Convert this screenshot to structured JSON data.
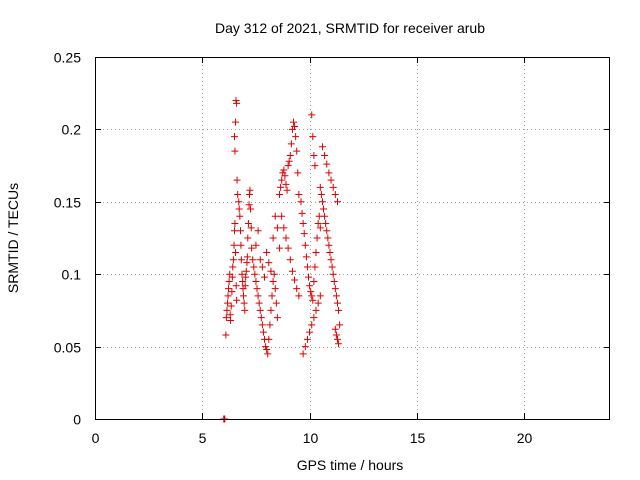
{
  "colors": {
    "series": "#e00000",
    "axis": "#000000",
    "grid": "#a0a0a0"
  },
  "chart_data": {
    "type": "scatter",
    "title": "Day 312 of 2021, SRMTID for receiver arub",
    "xlabel": "GPS time / hours",
    "ylabel": "SRMTID / TECUs",
    "xlim": [
      0,
      24
    ],
    "ylim": [
      0,
      0.25
    ],
    "grid": true,
    "legend": "none",
    "marker": "plus",
    "x_ticks": [
      0,
      5,
      10,
      15,
      20
    ],
    "x_tick_labels": [
      "0",
      "5",
      "10",
      "15",
      "20"
    ],
    "y_ticks": [
      0,
      0.05,
      0.1,
      0.15,
      0.2,
      0.25
    ],
    "y_tick_labels": [
      "0",
      "0.05",
      "0.1",
      "0.15",
      "0.2",
      "0.25"
    ],
    "series": [
      {
        "name": "SRMTID",
        "x": [
          6.0,
          6.03,
          6.05,
          6.1,
          6.12,
          6.15,
          6.18,
          6.2,
          6.22,
          6.25,
          6.28,
          6.3,
          6.32,
          6.35,
          6.38,
          6.4,
          6.42,
          6.45,
          6.48,
          6.5,
          6.52,
          6.55,
          6.58,
          6.6,
          6.5,
          6.52,
          6.55,
          6.57,
          6.6,
          6.62,
          6.65,
          6.7,
          6.72,
          6.75,
          6.78,
          6.8,
          6.82,
          6.85,
          6.88,
          6.9,
          6.92,
          6.95,
          6.98,
          7.0,
          7.02,
          7.05,
          7.08,
          7.1,
          7.12,
          7.15,
          7.18,
          7.2,
          7.22,
          7.25,
          7.28,
          7.3,
          7.35,
          7.4,
          7.45,
          7.5,
          7.55,
          7.6,
          7.65,
          7.7,
          7.75,
          7.8,
          7.85,
          7.9,
          7.95,
          8.0,
          8.05,
          8.1,
          8.15,
          8.2,
          8.25,
          8.3,
          8.35,
          8.4,
          8.45,
          8.5,
          7.5,
          7.6,
          7.7,
          7.8,
          7.9,
          8.0,
          8.1,
          8.2,
          8.3,
          8.4,
          8.5,
          8.6,
          8.6,
          8.65,
          8.7,
          8.75,
          8.8,
          8.85,
          8.9,
          8.95,
          9.0,
          9.05,
          9.1,
          9.15,
          9.2,
          9.25,
          9.3,
          9.35,
          9.4,
          9.45,
          9.5,
          8.7,
          8.8,
          8.9,
          9.0,
          9.1,
          9.2,
          9.3,
          9.4,
          9.5,
          9.6,
          9.65,
          9.7,
          9.75,
          9.8,
          9.85,
          9.9,
          9.95,
          10.0,
          10.05,
          10.1,
          10.15,
          10.2,
          10.25,
          10.3,
          10.35,
          10.4,
          10.45,
          10.5,
          9.7,
          9.8,
          9.9,
          10.0,
          10.1,
          10.2,
          10.3,
          10.4,
          10.5,
          10.1,
          10.15,
          10.2,
          10.25,
          10.5,
          10.55,
          10.6,
          10.65,
          10.7,
          10.75,
          10.8,
          10.85,
          10.9,
          10.95,
          11.0,
          11.05,
          11.1,
          11.15,
          11.2,
          11.25,
          11.3,
          11.35,
          10.6,
          10.7,
          10.8,
          10.9,
          11.0,
          11.1,
          11.2,
          11.3,
          11.2,
          11.25,
          11.3,
          11.35,
          11.4
        ],
        "y": [
          0.0,
          0.0,
          0.0,
          0.058,
          0.07,
          0.075,
          0.08,
          0.085,
          0.09,
          0.095,
          0.1,
          0.072,
          0.068,
          0.078,
          0.088,
          0.098,
          0.105,
          0.11,
          0.12,
          0.13,
          0.135,
          0.115,
          0.092,
          0.082,
          0.195,
          0.185,
          0.205,
          0.22,
          0.218,
          0.165,
          0.155,
          0.15,
          0.145,
          0.14,
          0.13,
          0.12,
          0.11,
          0.1,
          0.095,
          0.09,
          0.085,
          0.08,
          0.075,
          0.092,
          0.098,
          0.102,
          0.108,
          0.112,
          0.125,
          0.135,
          0.148,
          0.155,
          0.158,
          0.145,
          0.132,
          0.118,
          0.11,
          0.105,
          0.1,
          0.095,
          0.09,
          0.085,
          0.08,
          0.075,
          0.07,
          0.065,
          0.06,
          0.055,
          0.05,
          0.048,
          0.045,
          0.055,
          0.065,
          0.075,
          0.085,
          0.095,
          0.1,
          0.09,
          0.08,
          0.07,
          0.12,
          0.13,
          0.11,
          0.105,
          0.098,
          0.115,
          0.108,
          0.102,
          0.125,
          0.14,
          0.132,
          0.118,
          0.155,
          0.16,
          0.165,
          0.17,
          0.172,
          0.168,
          0.162,
          0.158,
          0.175,
          0.178,
          0.182,
          0.19,
          0.2,
          0.205,
          0.202,
          0.195,
          0.185,
          0.17,
          0.155,
          0.14,
          0.132,
          0.125,
          0.118,
          0.11,
          0.102,
          0.096,
          0.09,
          0.085,
          0.15,
          0.142,
          0.135,
          0.128,
          0.12,
          0.112,
          0.105,
          0.098,
          0.092,
          0.088,
          0.085,
          0.082,
          0.095,
          0.105,
          0.115,
          0.125,
          0.135,
          0.14,
          0.132,
          0.045,
          0.05,
          0.055,
          0.06,
          0.065,
          0.07,
          0.075,
          0.08,
          0.085,
          0.21,
          0.195,
          0.182,
          0.175,
          0.16,
          0.155,
          0.15,
          0.145,
          0.14,
          0.135,
          0.13,
          0.125,
          0.12,
          0.115,
          0.11,
          0.105,
          0.1,
          0.095,
          0.09,
          0.085,
          0.08,
          0.075,
          0.188,
          0.182,
          0.176,
          0.17,
          0.165,
          0.16,
          0.155,
          0.15,
          0.062,
          0.058,
          0.055,
          0.052,
          0.065
        ]
      }
    ]
  }
}
